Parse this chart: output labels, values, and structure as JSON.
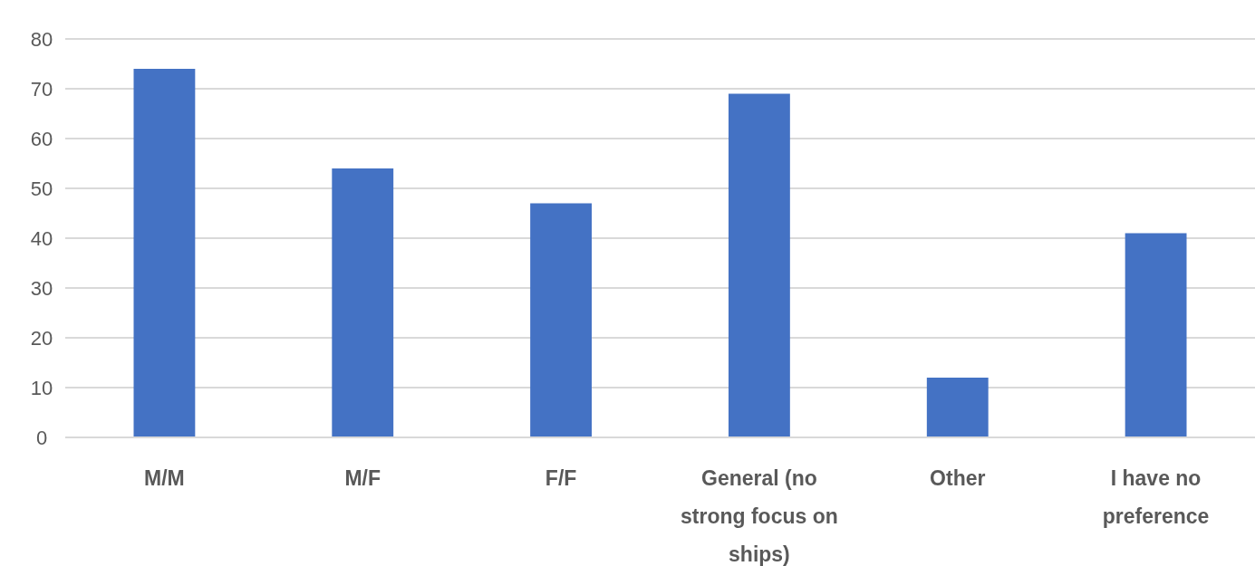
{
  "chart_data": {
    "type": "bar",
    "categories": [
      "M/M",
      "M/F",
      "F/F",
      "General (no strong focus on ships)",
      "Other",
      "I have no preference"
    ],
    "values": [
      74,
      54,
      47,
      69,
      12,
      41
    ],
    "color": "#4472c4",
    "ylim": [
      0,
      80
    ],
    "yticks": [
      0,
      10,
      20,
      30,
      40,
      50,
      60,
      70,
      80
    ],
    "grid": "y"
  }
}
